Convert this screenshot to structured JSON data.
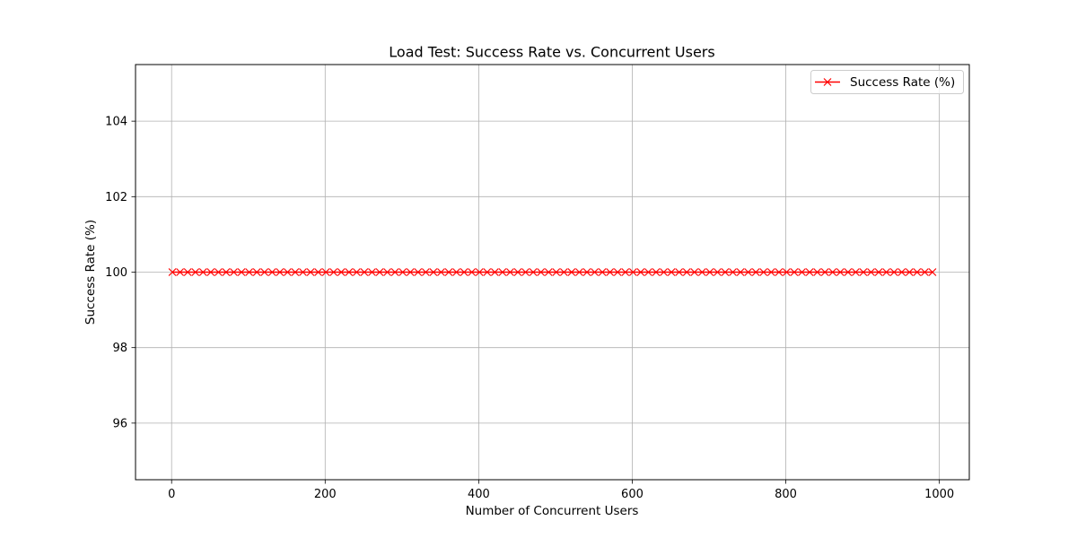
{
  "chart_data": {
    "type": "line",
    "title": "Load Test: Success Rate vs. Concurrent Users",
    "xlabel": "Number of Concurrent Users",
    "ylabel": "Success Rate (%)",
    "xlim": [
      -47,
      1039
    ],
    "ylim": [
      94.5,
      105.5
    ],
    "xticks": [
      0,
      200,
      400,
      600,
      800,
      1000
    ],
    "yticks": [
      96,
      98,
      100,
      102,
      104
    ],
    "grid": true,
    "legend_position": "top-right",
    "series": [
      {
        "name": "Success Rate (%)",
        "color": "#ff0000",
        "marker": "x",
        "x": [
          1,
          11,
          21,
          31,
          41,
          51,
          61,
          71,
          81,
          91,
          101,
          111,
          121,
          131,
          141,
          151,
          161,
          171,
          181,
          191,
          201,
          211,
          221,
          231,
          241,
          251,
          261,
          271,
          281,
          291,
          301,
          311,
          321,
          331,
          341,
          351,
          361,
          371,
          381,
          391,
          401,
          411,
          421,
          431,
          441,
          451,
          461,
          471,
          481,
          491,
          501,
          511,
          521,
          531,
          541,
          551,
          561,
          571,
          581,
          591,
          601,
          611,
          621,
          631,
          641,
          651,
          661,
          671,
          681,
          691,
          701,
          711,
          721,
          731,
          741,
          751,
          761,
          771,
          781,
          791,
          801,
          811,
          821,
          831,
          841,
          851,
          861,
          871,
          881,
          891,
          901,
          911,
          921,
          931,
          941,
          951,
          961,
          971,
          981,
          991
        ],
        "y": [
          100,
          100,
          100,
          100,
          100,
          100,
          100,
          100,
          100,
          100,
          100,
          100,
          100,
          100,
          100,
          100,
          100,
          100,
          100,
          100,
          100,
          100,
          100,
          100,
          100,
          100,
          100,
          100,
          100,
          100,
          100,
          100,
          100,
          100,
          100,
          100,
          100,
          100,
          100,
          100,
          100,
          100,
          100,
          100,
          100,
          100,
          100,
          100,
          100,
          100,
          100,
          100,
          100,
          100,
          100,
          100,
          100,
          100,
          100,
          100,
          100,
          100,
          100,
          100,
          100,
          100,
          100,
          100,
          100,
          100,
          100,
          100,
          100,
          100,
          100,
          100,
          100,
          100,
          100,
          100,
          100,
          100,
          100,
          100,
          100,
          100,
          100,
          100,
          100,
          100,
          100,
          100,
          100,
          100,
          100,
          100,
          100,
          100,
          100,
          100
        ]
      }
    ]
  }
}
